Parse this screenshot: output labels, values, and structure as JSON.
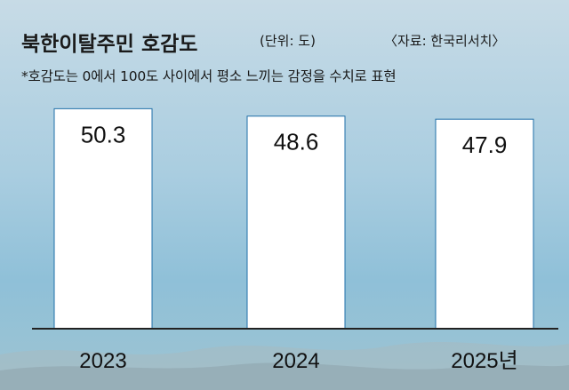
{
  "header": {
    "title": "북한이탈주민 호감도",
    "unit": "(단위: 도)",
    "source": "〈자료: 한국리서치〉",
    "note": "*호감도는 0에서 100도 사이에서 평소 느끼는 감정을 수치로 표현"
  },
  "colors": {
    "bar_fill": "#ffffff",
    "bar_stroke": "#1f6fa8",
    "baseline": "#222222"
  },
  "chart_data": {
    "type": "bar",
    "title": "북한이탈주민 호감도",
    "categories": [
      "2023",
      "2024",
      "2025년"
    ],
    "values": [
      50.3,
      48.6,
      47.9
    ],
    "value_labels": [
      "50.3",
      "48.6",
      "47.9"
    ],
    "xlabel": "",
    "ylabel": "",
    "ylim": [
      0,
      52
    ],
    "grid": false,
    "legend": "none"
  }
}
